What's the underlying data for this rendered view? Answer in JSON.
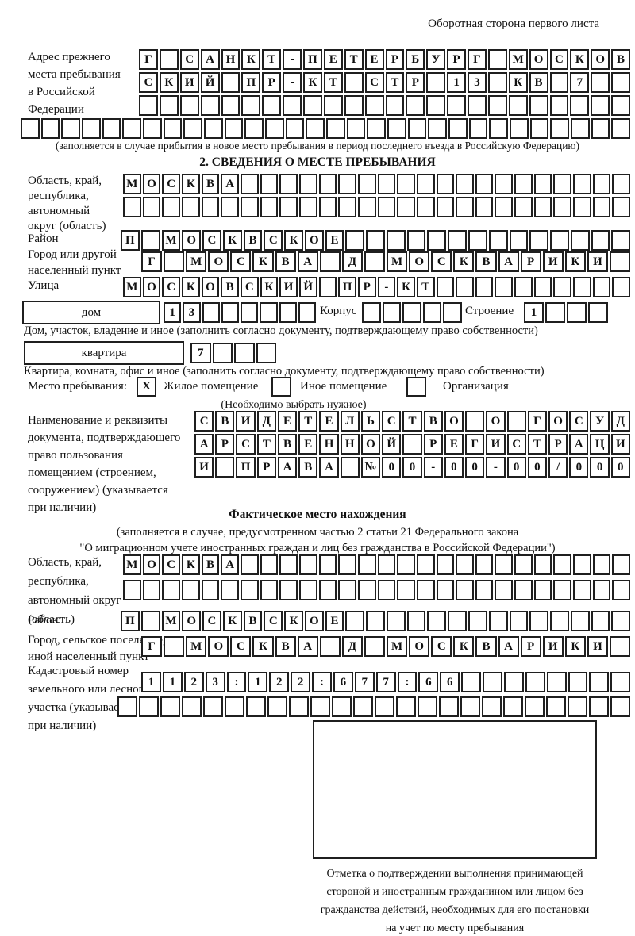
{
  "header": {
    "note": "Оборотная сторона первого листа"
  },
  "prev_address": {
    "label_lines": [
      "Адрес прежнего",
      "места пребывания",
      "в Российской",
      "Федерации"
    ],
    "row1": {
      "len": 24,
      "text": "Г САНКТ-ПЕТЕРБУРГ МОСКОВ"
    },
    "row2": {
      "len": 24,
      "text": "СКИЙ ПР-КТ СТР 13 КВ 7"
    },
    "row3": {
      "len": 24,
      "text": ""
    },
    "row4": {
      "len": 30,
      "text": ""
    },
    "note": "(заполняется в случае прибытия в новое место пребывания в период последнего въезда в Российскую Федерацию)"
  },
  "section2": {
    "title": "2. СВЕДЕНИЯ О МЕСТЕ ПРЕБЫВАНИЯ",
    "oblast": {
      "label_lines": [
        "Область, край,",
        "республика,",
        "автономный",
        "округ (область)"
      ],
      "row1": {
        "len": 26,
        "text": "МОСКВА"
      },
      "row2": {
        "len": 26,
        "text": ""
      }
    },
    "raion": {
      "label": "Район",
      "row": {
        "len": 25,
        "text": "П МОСКВСКОЕ"
      }
    },
    "gorod": {
      "label_lines": [
        "Город или другой",
        "населенный пункт"
      ],
      "row": {
        "len": 22,
        "text": "Г МОСКВА Д МОСКВАРИКИ"
      }
    },
    "ulitsa": {
      "label": "Улица",
      "row": {
        "len": 26,
        "text": "МОСКОВСКИЙ ПР-КТ"
      }
    },
    "dom": {
      "box_label": "дом",
      "row": {
        "len": 8,
        "text": "13"
      },
      "korpus_label": "Корпус",
      "korpus_row": {
        "len": 5,
        "text": ""
      },
      "stroenie_label": "Строение",
      "stroenie_row": {
        "len": 4,
        "text": "1"
      }
    },
    "dom_note": "Дом, участок, владение и иное (заполнить согласно документу, подтверждающему право собственности)",
    "kvartira": {
      "box_label": "квартира",
      "row": {
        "len": 4,
        "text": "7"
      }
    },
    "kvartira_note": "Квартира, комната, офис и иное (заполнить согласно документу, подтверждающему право собственности)",
    "residence": {
      "label": "Место пребывания:",
      "mark": "X",
      "options": [
        "Жилое помещение",
        "Иное помещение",
        "Организация"
      ],
      "note": "(Необходимо выбрать нужное)"
    },
    "document": {
      "label_lines": [
        "Наименование и реквизиты",
        "документа, подтверждающего",
        "право пользования",
        "помещением (строением,",
        "сооружением) (указывается",
        "при наличии)"
      ],
      "row1": {
        "len": 21,
        "text": "СВИДЕТЕЛЬСТВО О ГОСУД"
      },
      "row2": {
        "len": 21,
        "text": "АРСТВЕННОЙ РЕГИСТРАЦИ"
      },
      "row3": {
        "len": 21,
        "text": "И ПРАВА №00-00-00/000"
      }
    }
  },
  "actual_location": {
    "title": "Фактическое место нахождения",
    "note_lines": [
      "(заполняется в случае, предусмотренном частью 2 статьи 21 Федерального закона",
      "\"О миграционном учете иностранных граждан и лиц без гражданства в Российской Федерации\")"
    ],
    "oblast": {
      "label_lines": [
        "Область, край,",
        "республика,",
        "автономный округ",
        "(область)"
      ],
      "row1": {
        "len": 26,
        "text": "МОСКВА"
      },
      "row2": {
        "len": 26,
        "text": ""
      }
    },
    "raion": {
      "label": "Район",
      "row": {
        "len": 25,
        "text": "П МОСКВСКОЕ"
      }
    },
    "gorod": {
      "label_lines": [
        "Город, сельское поселение,",
        "иной населенный пункт"
      ],
      "row": {
        "len": 22,
        "text": "Г МОСКВА Д МОСКВАРИКИ"
      }
    },
    "kadastr": {
      "label_lines": [
        "Кадастровый номер",
        "земельного или лесного",
        "участка (указывается",
        "при наличии)"
      ],
      "row1": {
        "len": 23,
        "text": "1123:122:677:66"
      },
      "row2": {
        "len": 24,
        "text": ""
      }
    },
    "stamp_caption_lines": [
      "Отметка о подтверждении выполнения принимающей",
      "стороной и иностранным гражданином или лицом без",
      "гражданства действий, необходимых для его постановки",
      "на учет по месту пребывания"
    ]
  }
}
